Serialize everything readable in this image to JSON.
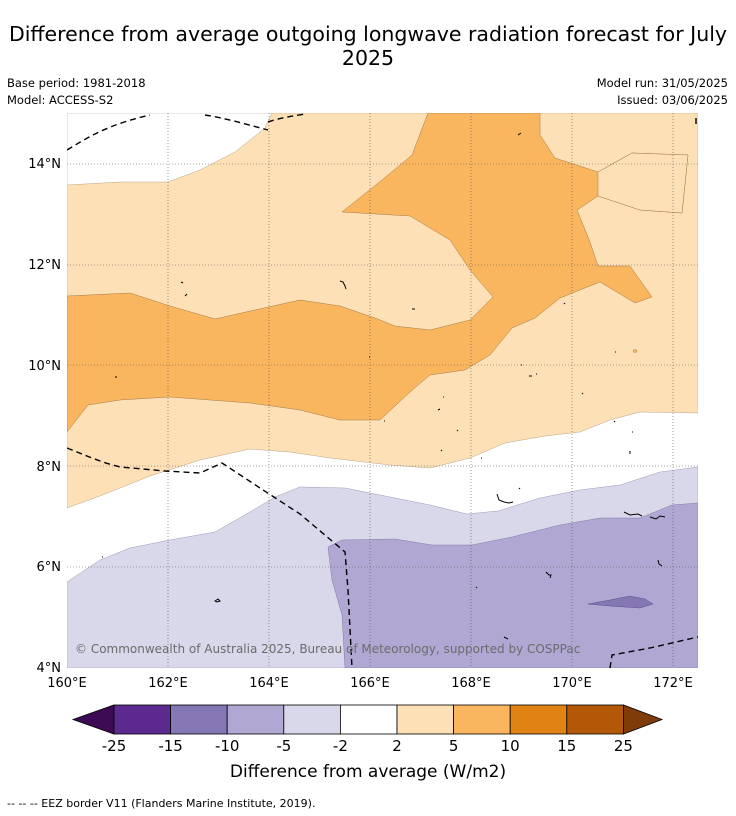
{
  "title": "Difference from average outgoing longwave radiation forecast for July 2025",
  "meta": {
    "base_period": "Base period: 1981-2018",
    "model": "Model: ACCESS-S2",
    "model_run": "Model run: 31/05/2025",
    "issued": "Issued: 03/06/2025"
  },
  "map": {
    "lon_ticks": [
      "160°E",
      "162°E",
      "164°E",
      "166°E",
      "168°E",
      "170°E",
      "172°E"
    ],
    "lat_ticks": [
      "14°N",
      "12°N",
      "10°N",
      "8°N",
      "6°N",
      "4°N"
    ],
    "copyright": "© Commonwealth of Australia 2025, Bureau of Meteorology, supported by COSPPac"
  },
  "colorbar": {
    "label": "Difference from average (W/m2)",
    "ticks": [
      "-25",
      "-15",
      "-10",
      "-5",
      "-2",
      "2",
      "5",
      "10",
      "15",
      "25"
    ],
    "colors": [
      "#3d0a54",
      "#5c2a8e",
      "#8576b4",
      "#b0a8d2",
      "#d9d8ea",
      "#ffffff",
      "#fde0b5",
      "#fab65e",
      "#e08214",
      "#b35806",
      "#7f3b08"
    ]
  },
  "footnote": "--  --  -- EEZ border V11 (Flanders Marine Institute, 2019)."
}
